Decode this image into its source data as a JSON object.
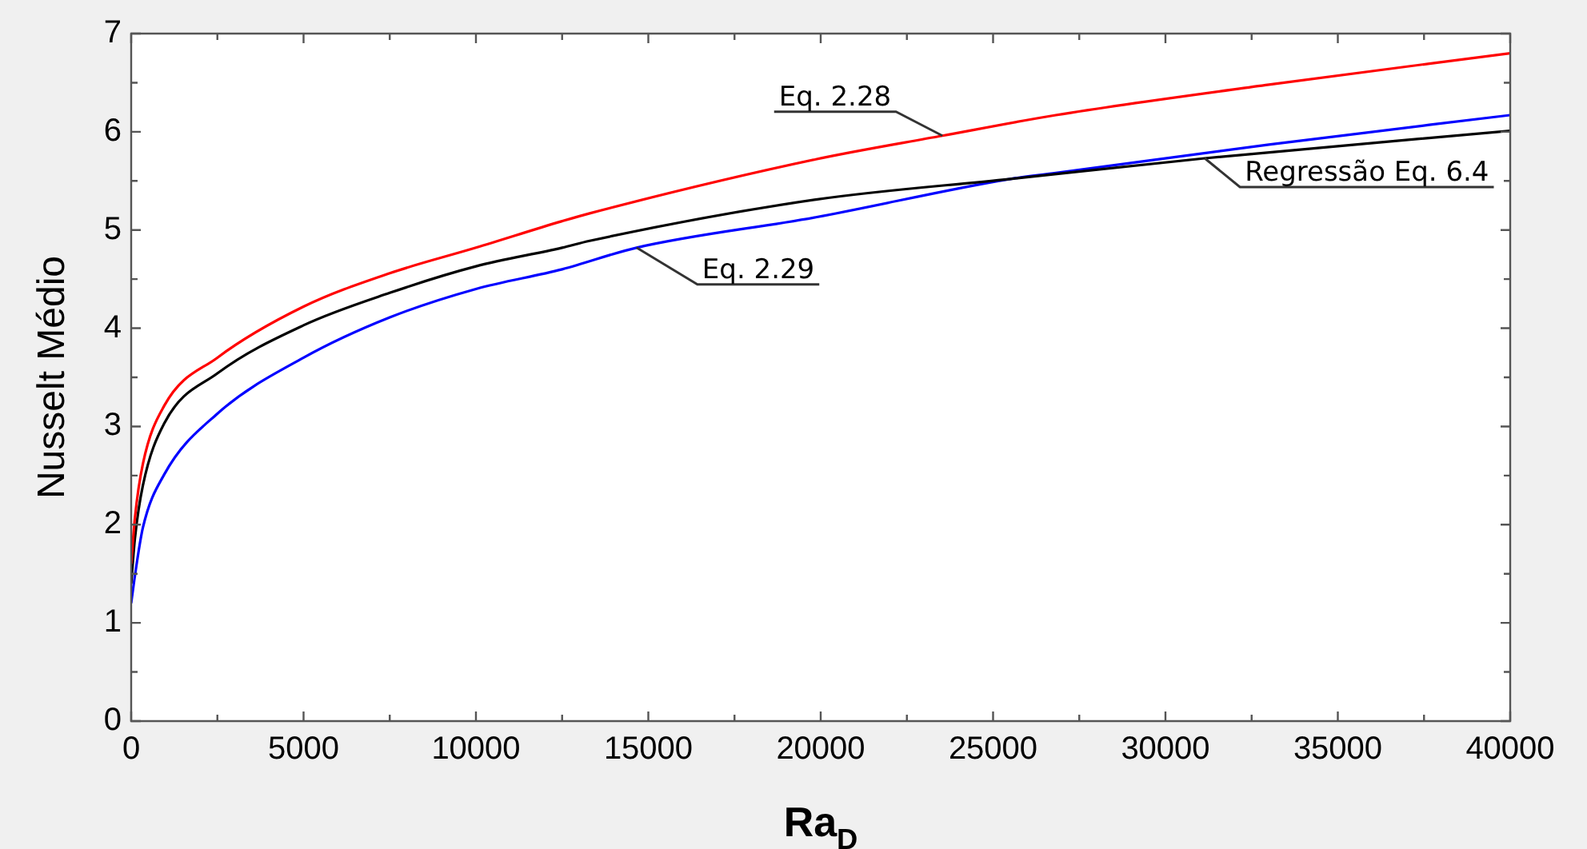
{
  "chart_data": {
    "type": "line",
    "xlabel": "Ra$_{D}$",
    "ylabel": "Nusselt Médio",
    "xlim": [
      0,
      40000
    ],
    "ylim": [
      0,
      7
    ],
    "xticks": [
      0,
      {
        "value": 2500,
        "label": null
      },
      5000,
      {
        "value": 7500,
        "label": null
      },
      10000,
      {
        "value": 12500,
        "label": null
      },
      15000,
      {
        "value": 17500,
        "label": null
      },
      20000,
      {
        "value": 22500,
        "label": null
      },
      25000,
      {
        "value": 27500,
        "label": null
      },
      30000,
      {
        "value": 32500,
        "label": null
      },
      35000,
      {
        "value": 37500,
        "label": null
      },
      40000
    ],
    "yticks": [
      0,
      {
        "value": 0.5,
        "label": null
      },
      1,
      {
        "value": 1.5,
        "label": null
      },
      2,
      {
        "value": 2.5,
        "label": null
      },
      3,
      {
        "value": 3.5,
        "label": null
      },
      4,
      {
        "value": 4.5,
        "label": null
      },
      5,
      {
        "value": 5.5,
        "label": null
      },
      6,
      {
        "value": 6.5,
        "label": null
      },
      7
    ],
    "grid": false,
    "legend": false,
    "marker": "none",
    "line_style": "solid",
    "series": [
      {
        "color": "#ff0000",
        "x": [
          0,
          108,
          340,
          957,
          2500,
          5000,
          7500,
          10000,
          12500,
          13300,
          19860,
          23530,
          26820,
          33000,
          40000
        ],
        "values": [
          1.6,
          2.07,
          2.62,
          3.21,
          3.7,
          4.22,
          4.56,
          4.82,
          5.09,
          5.17,
          5.72,
          5.96,
          6.17,
          6.48,
          6.8
        ]
      },
      {
        "color": "#000000",
        "x": [
          0,
          108,
          340,
          957,
          2500,
          5000,
          7500,
          10000,
          12500,
          13300,
          19860,
          25500,
          31140,
          40000
        ],
        "values": [
          1.4,
          1.86,
          2.4,
          3.03,
          3.54,
          4.03,
          4.36,
          4.63,
          4.82,
          4.89,
          5.31,
          5.52,
          5.73,
          6.01
        ]
      },
      {
        "color": "#0000ff",
        "x": [
          0,
          108,
          340,
          957,
          2500,
          5000,
          7500,
          10000,
          12500,
          14660,
          19860,
          25500,
          26820,
          33000,
          40000
        ],
        "values": [
          1.2,
          1.48,
          1.97,
          2.51,
          3.13,
          3.7,
          4.11,
          4.4,
          4.6,
          4.82,
          5.13,
          5.52,
          5.58,
          5.87,
          6.17
        ]
      }
    ],
    "annotations": [
      {
        "text": "Eq. 2.28",
        "x": 23530,
        "y": 5.96
      },
      {
        "text": "Eq. 2.29",
        "x": 14660,
        "y": 4.82
      },
      {
        "text": "Regressão Eq. 6.4",
        "x": 31140,
        "y": 5.73
      }
    ]
  }
}
